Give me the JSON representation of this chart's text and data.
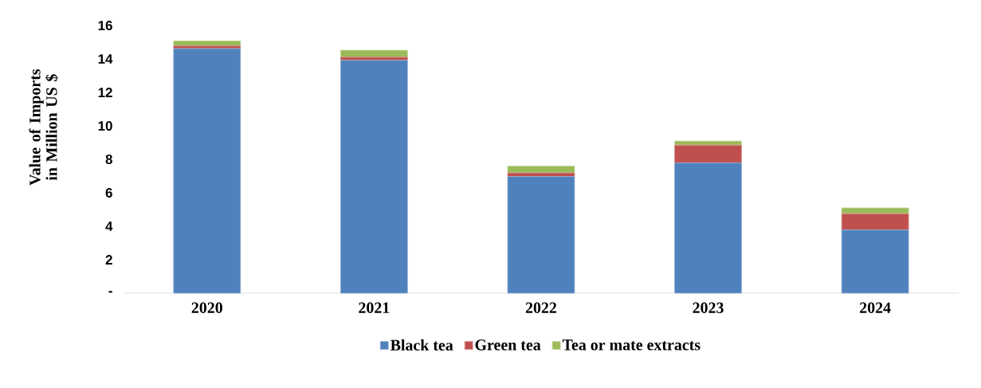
{
  "chart_data": {
    "type": "bar",
    "stacked": true,
    "ylabel": "Value of Imports in Million US $",
    "categories": [
      "2020",
      "2021",
      "2022",
      "2023",
      "2024"
    ],
    "series": [
      {
        "name": "Black tea",
        "color": "#4f81bd",
        "values": [
          14.62,
          13.92,
          6.97,
          7.79,
          3.78
        ]
      },
      {
        "name": "Green tea",
        "color": "#c0504d",
        "values": [
          0.16,
          0.19,
          0.22,
          1.06,
          0.97
        ]
      },
      {
        "name": "Tea or mate extracts",
        "color": "#9bbb59",
        "values": [
          0.3,
          0.41,
          0.41,
          0.24,
          0.35
        ]
      }
    ],
    "ylim": [
      0,
      16
    ],
    "yticks": [
      {
        "value": 0,
        "label": "-"
      },
      2,
      4,
      6,
      8,
      10,
      12,
      14,
      16
    ],
    "grid": false,
    "legend": "bottom"
  }
}
